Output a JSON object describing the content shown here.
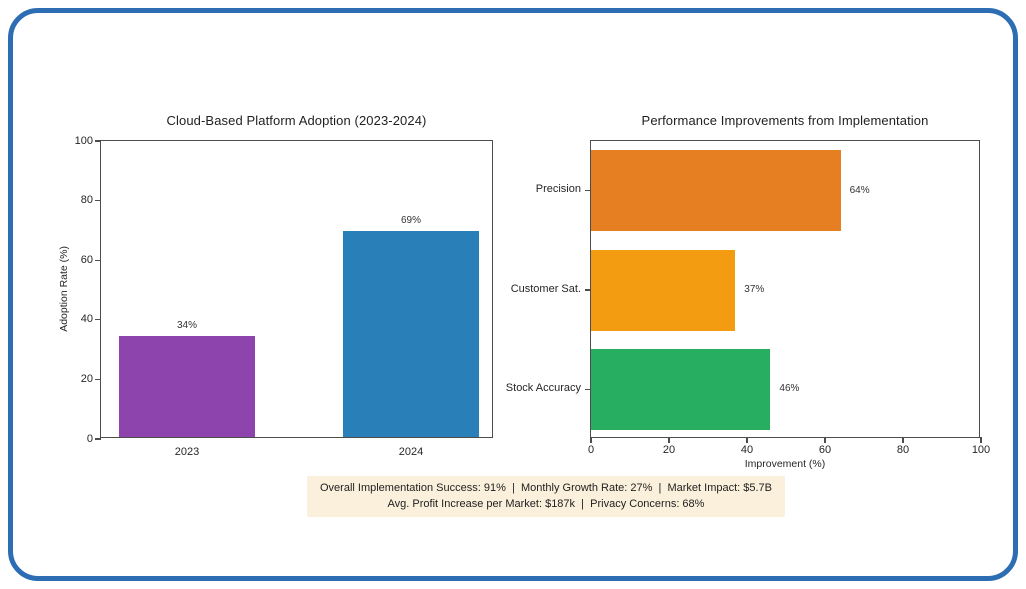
{
  "card": {
    "border_color": "#2d6db4",
    "background": "#ffffff"
  },
  "chart_data": [
    {
      "type": "bar",
      "orientation": "vertical",
      "title": "Cloud-Based Platform Adoption (2023-2024)",
      "categories": [
        "2023",
        "2024"
      ],
      "values": [
        34,
        69
      ],
      "value_labels": [
        "34%",
        "69%"
      ],
      "bar_colors": [
        "#8e44ad",
        "#2980b9"
      ],
      "xlabel": "",
      "ylabel": "Adoption Rate (%)",
      "ylim": [
        0,
        100
      ],
      "yticks": [
        0,
        20,
        40,
        60,
        80,
        100
      ],
      "grid": false,
      "legend": "none"
    },
    {
      "type": "bar",
      "orientation": "horizontal",
      "title": "Performance Improvements from Implementation",
      "categories": [
        "Precision",
        "Customer Sat.",
        "Stock Accuracy"
      ],
      "values": [
        64,
        37,
        46
      ],
      "value_labels": [
        "64%",
        "37%",
        "46%"
      ],
      "bar_colors": [
        "#e67e22",
        "#f39c12",
        "#27ae60"
      ],
      "xlabel": "Improvement (%)",
      "xlim": [
        0,
        100
      ],
      "xticks": [
        0,
        20,
        40,
        60,
        80,
        100
      ],
      "grid": false,
      "legend": "none"
    }
  ],
  "footer": {
    "background": "#faf0dc",
    "line1": "Overall Implementation Success: 91%  |  Monthly Growth Rate: 27%  |  Market Impact: $5.7B",
    "line2": "Avg. Profit Increase per Market: $187k  |  Privacy Concerns: 68%"
  }
}
